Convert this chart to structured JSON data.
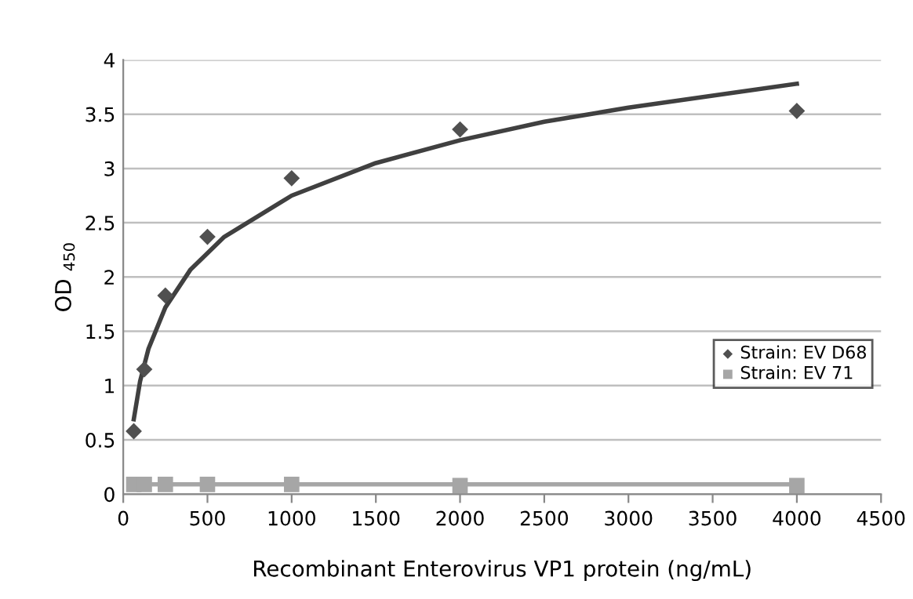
{
  "chart_data": {
    "type": "scatter",
    "xlabel": "Recombinant Enterovirus VP1 protein (ng/mL)",
    "ylabel": "OD $_{450}$",
    "xlim": [
      0,
      4500
    ],
    "xticks": [
      0,
      500,
      1000,
      1500,
      2000,
      2500,
      3000,
      3500,
      4000,
      4500
    ],
    "ylim": [
      0,
      4
    ],
    "yticks": [
      0,
      0.5,
      1,
      1.5,
      2,
      2.5,
      3,
      3.5,
      4
    ],
    "grid": "y",
    "legend": "right",
    "series": [
      {
        "name": "Strain: EV D68",
        "marker": "diamond",
        "color": "#505050",
        "x": [
          62.5,
          125,
          250,
          500,
          1000,
          2000,
          4000
        ],
        "values": [
          0.58,
          1.15,
          1.83,
          2.37,
          2.91,
          3.36,
          3.53
        ]
      },
      {
        "name": "Strain: EV 71",
        "marker": "square",
        "color": "#a6a6a6",
        "x": [
          62.5,
          125,
          250,
          500,
          1000,
          2000,
          4000
        ],
        "values": [
          0.09,
          0.09,
          0.09,
          0.09,
          0.09,
          0.08,
          0.08
        ]
      },
      {
        "type": "line",
        "color": "#404040",
        "x": [
          62.5,
          100,
          150,
          250,
          400,
          600,
          1000,
          1500,
          2000,
          2500,
          3000,
          3500,
          4000
        ],
        "values": [
          0.69,
          1.04,
          1.34,
          1.72,
          2.07,
          2.37,
          2.75,
          3.05,
          3.26,
          3.43,
          3.56,
          3.67,
          3.78
        ]
      },
      {
        "type": "line",
        "color": "#a6a6a6",
        "x": [
          62.5,
          4000
        ],
        "values": [
          0.09,
          0.09
        ]
      }
    ]
  }
}
